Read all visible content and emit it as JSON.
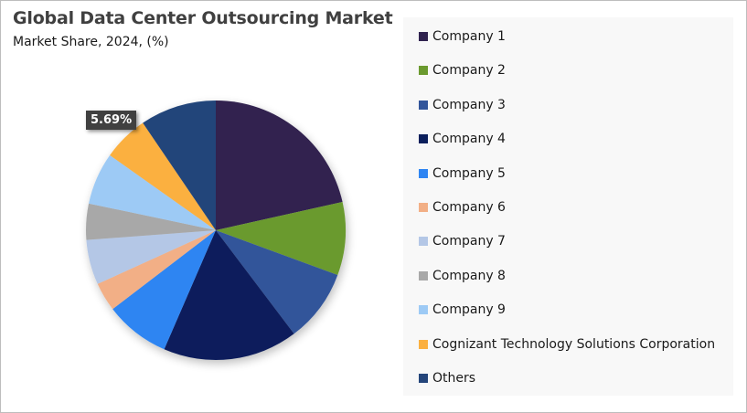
{
  "header": {
    "title": "Global Data Center Outsourcing Market",
    "subtitle": "Market Share, 2024, (%)"
  },
  "highlight_label": "5.69%",
  "legend": {
    "items": [
      {
        "label": "Company 1",
        "color": "#30234f"
      },
      {
        "label": "Company 2",
        "color": "#6b9a2f"
      },
      {
        "label": "Company 3",
        "color": "#32559a"
      },
      {
        "label": "Company 4",
        "color": "#0b1f5c"
      },
      {
        "label": "Company 5",
        "color": "#2f85f2"
      },
      {
        "label": "Company 6",
        "color": "#f2af86"
      },
      {
        "label": "Company 7",
        "color": "#b4c7e6"
      },
      {
        "label": "Company 8",
        "color": "#a8a8a8"
      },
      {
        "label": "Company 9",
        "color": "#9dcaf5"
      },
      {
        "label": "Cognizant Technology Solutions Corporation",
        "color": "#fbb040"
      },
      {
        "label": "Others",
        "color": "#24457a"
      }
    ]
  },
  "chart_data": {
    "type": "pie",
    "title": "Global Data Center Outsourcing Market",
    "subtitle": "Market Share, 2024, (%)",
    "categories": [
      "Company 1",
      "Company 2",
      "Company 3",
      "Company 4",
      "Company 5",
      "Company 6",
      "Company 7",
      "Company 8",
      "Company 9",
      "Cognizant Technology Solutions Corporation",
      "Others"
    ],
    "values": [
      21.5,
      9.1,
      9.1,
      16.8,
      8.1,
      3.6,
      5.6,
      4.5,
      6.5,
      5.69,
      9.5
    ],
    "colors": [
      "#30234f",
      "#6b9a2f",
      "#32559a",
      "#0b1f5c",
      "#2f85f2",
      "#f2af86",
      "#b4c7e6",
      "#a8a8a8",
      "#9dcaf5",
      "#fbb040",
      "#24457a"
    ],
    "annotations": [
      {
        "category": "Cognizant Technology Solutions Corporation",
        "text": "5.69%"
      }
    ],
    "start_angle_deg": 0,
    "direction": "clockwise",
    "legend_position": "right",
    "unit": "%"
  }
}
